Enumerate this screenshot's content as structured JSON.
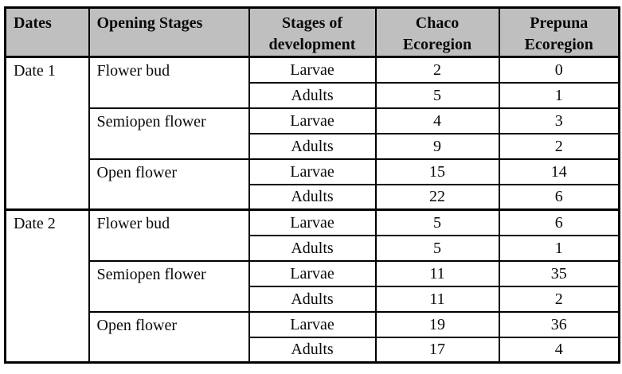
{
  "page": {
    "background_color": "#ffffff",
    "border_color": "#000000",
    "header_bg_color": "#bfbfbf",
    "text_color": "#000000"
  },
  "table": {
    "header": {
      "dates": "Dates",
      "opening_stages": "Opening Stages",
      "development": "Stages of development",
      "chaco": "Chaco Ecoregion",
      "prepuna": "Prepuna Ecoregion"
    },
    "dates": [
      {
        "label": "Date 1",
        "groups": [
          {
            "opening_stage": "Flower bud",
            "rows": [
              {
                "stage": "Larvae",
                "chaco": "2",
                "prepuna": "0"
              },
              {
                "stage": "Adults",
                "chaco": "5",
                "prepuna": "1"
              }
            ]
          },
          {
            "opening_stage": "Semiopen flower",
            "rows": [
              {
                "stage": "Larvae",
                "chaco": "4",
                "prepuna": "3"
              },
              {
                "stage": "Adults",
                "chaco": "9",
                "prepuna": "2"
              }
            ]
          },
          {
            "opening_stage": "Open flower",
            "rows": [
              {
                "stage": "Larvae",
                "chaco": "15",
                "prepuna": "14"
              },
              {
                "stage": "Adults",
                "chaco": "22",
                "prepuna": "6"
              }
            ]
          }
        ]
      },
      {
        "label": "Date 2",
        "groups": [
          {
            "opening_stage": "Flower bud",
            "rows": [
              {
                "stage": "Larvae",
                "chaco": "5",
                "prepuna": "6"
              },
              {
                "stage": "Adults",
                "chaco": "5",
                "prepuna": "1"
              }
            ]
          },
          {
            "opening_stage": "Semiopen flower",
            "rows": [
              {
                "stage": "Larvae",
                "chaco": "11",
                "prepuna": "35"
              },
              {
                "stage": "Adults",
                "chaco": "11",
                "prepuna": "2"
              }
            ]
          },
          {
            "opening_stage": "Open flower",
            "rows": [
              {
                "stage": "Larvae",
                "chaco": "19",
                "prepuna": "36"
              },
              {
                "stage": "Adults",
                "chaco": "17",
                "prepuna": "4"
              }
            ]
          }
        ]
      }
    ]
  },
  "chart_data": {
    "type": "table",
    "columns": [
      "Dates",
      "Opening Stages",
      "Stages of development",
      "Chaco Ecoregion",
      "Prepuna Ecoregion"
    ],
    "rows": [
      [
        "Date 1",
        "Flower bud",
        "Larvae",
        2,
        0
      ],
      [
        "Date 1",
        "Flower bud",
        "Adults",
        5,
        1
      ],
      [
        "Date 1",
        "Semiopen flower",
        "Larvae",
        4,
        3
      ],
      [
        "Date 1",
        "Semiopen flower",
        "Adults",
        9,
        2
      ],
      [
        "Date 1",
        "Open flower",
        "Larvae",
        15,
        14
      ],
      [
        "Date 1",
        "Open flower",
        "Adults",
        22,
        6
      ],
      [
        "Date 2",
        "Flower bud",
        "Larvae",
        5,
        6
      ],
      [
        "Date 2",
        "Flower bud",
        "Adults",
        5,
        1
      ],
      [
        "Date 2",
        "Semiopen flower",
        "Larvae",
        11,
        35
      ],
      [
        "Date 2",
        "Semiopen flower",
        "Adults",
        11,
        2
      ],
      [
        "Date 2",
        "Open flower",
        "Larvae",
        19,
        36
      ],
      [
        "Date 2",
        "Open flower",
        "Adults",
        17,
        4
      ]
    ]
  }
}
